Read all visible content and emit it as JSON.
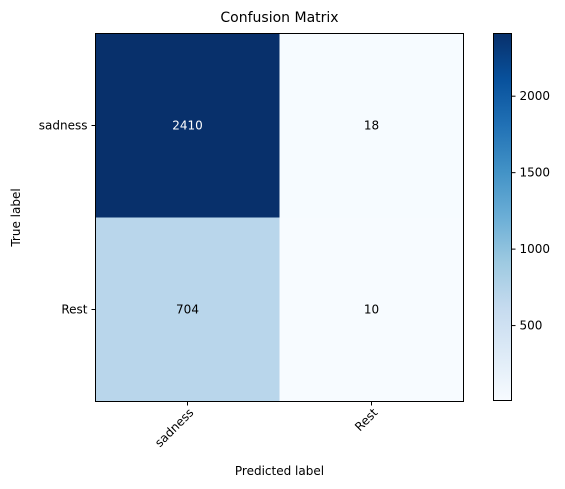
{
  "chart_data": {
    "type": "heatmap",
    "title": "Confusion Matrix",
    "xlabel": "Predicted label",
    "ylabel": "True label",
    "x_categories": [
      "sadness",
      "Rest"
    ],
    "y_categories": [
      "sadness",
      "Rest"
    ],
    "values": [
      [
        2410,
        18
      ],
      [
        704,
        10
      ]
    ],
    "colormap": "Blues",
    "colorbar": {
      "ticks": [
        500,
        1000,
        1500,
        2000
      ],
      "tick_labels": [
        "500",
        "1000",
        "1500",
        "2000"
      ],
      "min": 10,
      "max": 2410
    },
    "cell_text_colors": {
      "light": "#ffffff",
      "dark": "#000000"
    },
    "x_tick_rotation": 45,
    "grid": false
  }
}
